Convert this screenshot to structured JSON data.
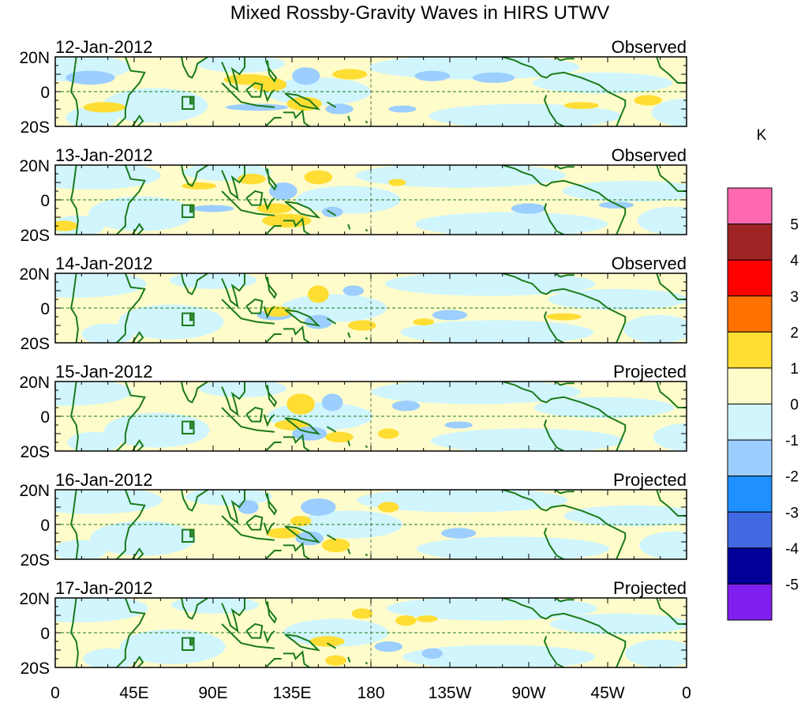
{
  "chart_data": {
    "type": "heatmap",
    "title": "Mixed Rossby-Gravity Waves in HIRS UTWV",
    "units": "K",
    "xlim_lon": [
      0,
      360
    ],
    "ylim_lat": [
      -20,
      20
    ],
    "x_ticks": [
      {
        "lon": 0,
        "label": "0"
      },
      {
        "lon": 45,
        "label": "45E"
      },
      {
        "lon": 90,
        "label": "90E"
      },
      {
        "lon": 135,
        "label": "135E"
      },
      {
        "lon": 180,
        "label": "180"
      },
      {
        "lon": 225,
        "label": "135W"
      },
      {
        "lon": 270,
        "label": "90W"
      },
      {
        "lon": 315,
        "label": "45W"
      },
      {
        "lon": 360,
        "label": "0"
      }
    ],
    "y_ticks": [
      {
        "lat": 20,
        "label": "20N"
      },
      {
        "lat": 0,
        "label": "0"
      },
      {
        "lat": -20,
        "label": "20S"
      }
    ],
    "colorbar": {
      "levels": [
        "5",
        "4",
        "3",
        "2",
        "1",
        "0",
        "-1",
        "-2",
        "-3",
        "-4",
        "-5"
      ],
      "colors": [
        "#ff69b4",
        "#9e2424",
        "#ff0000",
        "#ff7100",
        "#ffdd33",
        "#fffccb",
        "#d0f5fd",
        "#9ccfff",
        "#1e90ff",
        "#4169e1",
        "#000099",
        "#8020f0"
      ]
    },
    "panels": [
      {
        "date": "12-Jan-2012",
        "status": "Observed",
        "blobs": [
          [
            20,
            8,
            14,
            4,
            -1
          ],
          [
            28,
            -9,
            12,
            3,
            1
          ],
          [
            110,
            7,
            14,
            3,
            1
          ],
          [
            122,
            4,
            10,
            4,
            1
          ],
          [
            143,
            9,
            8,
            5,
            -1
          ],
          [
            168,
            10,
            10,
            3,
            1
          ],
          [
            115,
            -9,
            18,
            2,
            -1
          ],
          [
            142,
            -7,
            10,
            4,
            1
          ],
          [
            162,
            -10,
            8,
            3,
            -1
          ],
          [
            198,
            -10,
            8,
            2,
            -1
          ],
          [
            215,
            9,
            10,
            3,
            -1
          ],
          [
            250,
            8,
            12,
            3,
            -1
          ],
          [
            300,
            -8,
            10,
            2,
            1
          ],
          [
            338,
            -5,
            8,
            3,
            1
          ]
        ]
      },
      {
        "date": "13-Jan-2012",
        "status": "Observed",
        "blobs": [
          [
            5,
            -15,
            8,
            3,
            1
          ],
          [
            82,
            8,
            10,
            2,
            1
          ],
          [
            112,
            12,
            8,
            3,
            1
          ],
          [
            150,
            13,
            8,
            4,
            1
          ],
          [
            130,
            5,
            8,
            5,
            -1
          ],
          [
            125,
            -5,
            10,
            3,
            1
          ],
          [
            132,
            -12,
            14,
            4,
            1
          ],
          [
            158,
            -7,
            6,
            3,
            -1
          ],
          [
            90,
            -5,
            12,
            2,
            -1
          ],
          [
            195,
            10,
            5,
            2,
            1
          ],
          [
            270,
            -5,
            10,
            3,
            -1
          ],
          [
            320,
            -3,
            10,
            2,
            -1
          ]
        ]
      },
      {
        "date": "14-Jan-2012",
        "status": "Observed",
        "blobs": [
          [
            150,
            8,
            6,
            5,
            1
          ],
          [
            170,
            10,
            6,
            3,
            -1
          ],
          [
            125,
            -4,
            10,
            3,
            -1
          ],
          [
            150,
            -8,
            8,
            4,
            -1
          ],
          [
            127,
            -2,
            8,
            3,
            1
          ],
          [
            175,
            -10,
            8,
            3,
            1
          ],
          [
            210,
            -8,
            6,
            2,
            1
          ],
          [
            225,
            -4,
            10,
            3,
            -1
          ],
          [
            290,
            -5,
            10,
            2,
            1
          ]
        ]
      },
      {
        "date": "15-Jan-2012",
        "status": "Projected",
        "blobs": [
          [
            140,
            7,
            8,
            6,
            1
          ],
          [
            158,
            8,
            6,
            5,
            -1
          ],
          [
            135,
            -5,
            10,
            3,
            1
          ],
          [
            145,
            -10,
            10,
            4,
            -1
          ],
          [
            162,
            -12,
            8,
            3,
            1
          ],
          [
            190,
            -10,
            6,
            3,
            1
          ],
          [
            200,
            6,
            8,
            3,
            -1
          ],
          [
            230,
            -5,
            8,
            2,
            -1
          ]
        ]
      },
      {
        "date": "16-Jan-2012",
        "status": "Projected",
        "blobs": [
          [
            110,
            10,
            6,
            4,
            -1
          ],
          [
            150,
            10,
            10,
            5,
            -1
          ],
          [
            130,
            -5,
            10,
            3,
            1
          ],
          [
            145,
            -8,
            8,
            4,
            -1
          ],
          [
            160,
            -12,
            8,
            4,
            1
          ],
          [
            140,
            2,
            6,
            3,
            1
          ],
          [
            190,
            10,
            6,
            3,
            1
          ],
          [
            230,
            -5,
            10,
            3,
            -1
          ]
        ]
      },
      {
        "date": "17-Jan-2012",
        "status": "Projected",
        "blobs": [
          [
            175,
            11,
            6,
            3,
            1
          ],
          [
            200,
            7,
            6,
            3,
            1
          ],
          [
            212,
            8,
            6,
            2,
            1
          ],
          [
            190,
            -8,
            8,
            3,
            -1
          ],
          [
            215,
            -12,
            6,
            3,
            -1
          ],
          [
            155,
            -5,
            10,
            3,
            1
          ],
          [
            160,
            -16,
            6,
            3,
            1
          ]
        ]
      }
    ]
  }
}
